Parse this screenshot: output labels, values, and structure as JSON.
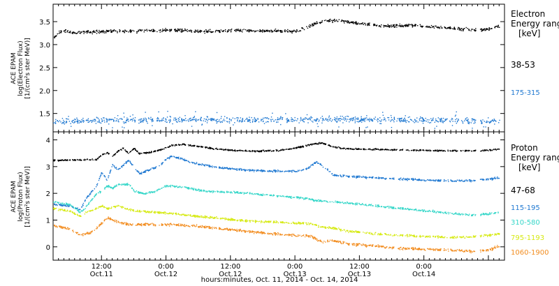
{
  "chart_data": [
    {
      "type": "scatter",
      "panel": "electron",
      "ylabel_lines": [
        "ACE EPAM",
        "log(Electron Flux)",
        "[1/(cm²s ster MeV)]"
      ],
      "yticks": [
        1.5,
        2.0,
        2.5,
        3.0,
        3.5
      ],
      "yticklabels": [
        "1.5",
        "2.0",
        "2.5",
        "3.0",
        "3.5"
      ],
      "ylim": [
        1.1,
        3.88
      ],
      "xlim": [
        0,
        84
      ],
      "legend_title_lines": [
        "Electron",
        "Energy ranges",
        "[keV]"
      ],
      "legend_placement": "right",
      "series": [
        {
          "name": "38-53",
          "color": "#000000",
          "noise": 0.035,
          "points": [
            [
              0,
              3.15
            ],
            [
              1,
              3.28
            ],
            [
              2,
              3.3
            ],
            [
              4,
              3.26
            ],
            [
              6,
              3.28
            ],
            [
              10,
              3.3
            ],
            [
              14,
              3.3
            ],
            [
              18,
              3.31
            ],
            [
              22,
              3.33
            ],
            [
              26,
              3.3
            ],
            [
              30,
              3.3
            ],
            [
              34,
              3.32
            ],
            [
              38,
              3.31
            ],
            [
              42,
              3.31
            ],
            [
              45,
              3.3
            ],
            [
              47,
              3.38
            ],
            [
              49,
              3.48
            ],
            [
              51,
              3.53
            ],
            [
              53,
              3.53
            ],
            [
              55,
              3.5
            ],
            [
              57,
              3.47
            ],
            [
              59,
              3.44
            ],
            [
              61,
              3.41
            ],
            [
              64,
              3.42
            ],
            [
              66,
              3.43
            ],
            [
              69,
              3.41
            ],
            [
              72,
              3.38
            ],
            [
              75,
              3.36
            ],
            [
              78,
              3.33
            ],
            [
              80,
              3.33
            ],
            [
              82,
              3.37
            ],
            [
              83,
              3.41
            ]
          ]
        },
        {
          "name": "175-315",
          "color": "#1f78d1",
          "noise": 0.07,
          "points": [
            [
              0,
              1.33
            ],
            [
              10,
              1.36
            ],
            [
              20,
              1.38
            ],
            [
              30,
              1.37
            ],
            [
              40,
              1.37
            ],
            [
              50,
              1.38
            ],
            [
              60,
              1.38
            ],
            [
              70,
              1.37
            ],
            [
              78,
              1.35
            ],
            [
              83,
              1.33
            ]
          ]
        }
      ]
    },
    {
      "type": "scatter",
      "panel": "proton",
      "ylabel_lines": [
        "ACE EPAM",
        "log(Proton Flux)",
        "[1/(cm²s ster MeV)]"
      ],
      "yticks": [
        0,
        1,
        2,
        3,
        4
      ],
      "yticklabels": [
        "0",
        "1",
        "2",
        "3",
        "4"
      ],
      "ylim": [
        -0.5,
        4.3
      ],
      "xlim": [
        0,
        84
      ],
      "xticks": [
        9,
        21,
        33,
        45,
        57,
        69,
        81
      ],
      "xticklabels_time": [
        "12:00",
        "0:00",
        "12:00",
        "0:00",
        "12:00",
        "0:00",
        ""
      ],
      "xticklabels_date": [
        "Oct.11",
        "Oct.12",
        "Oct.12",
        "Oct.13",
        "Oct.13",
        "Oct.14",
        ""
      ],
      "xlabel": "hours:minutes, Oct. 11, 2014 - Oct. 14, 2014",
      "legend_title_lines": [
        "Proton",
        "Energy ranges",
        "[keV]"
      ],
      "legend_placement": "right",
      "series": [
        {
          "name": "47-68",
          "color": "#000000",
          "noise": 0.03,
          "points": [
            [
              0,
              3.25
            ],
            [
              8,
              3.28
            ],
            [
              9,
              3.45
            ],
            [
              10,
              3.55
            ],
            [
              11,
              3.4
            ],
            [
              12,
              3.6
            ],
            [
              13,
              3.7
            ],
            [
              14,
              3.5
            ],
            [
              15,
              3.7
            ],
            [
              16,
              3.5
            ],
            [
              18,
              3.55
            ],
            [
              20,
              3.65
            ],
            [
              22,
              3.8
            ],
            [
              24,
              3.85
            ],
            [
              26,
              3.8
            ],
            [
              28,
              3.75
            ],
            [
              30,
              3.68
            ],
            [
              34,
              3.62
            ],
            [
              38,
              3.6
            ],
            [
              42,
              3.62
            ],
            [
              44,
              3.68
            ],
            [
              46,
              3.75
            ],
            [
              48,
              3.85
            ],
            [
              50,
              3.9
            ],
            [
              52,
              3.75
            ],
            [
              55,
              3.68
            ],
            [
              60,
              3.66
            ],
            [
              65,
              3.64
            ],
            [
              70,
              3.62
            ],
            [
              76,
              3.61
            ],
            [
              80,
              3.62
            ],
            [
              83,
              3.66
            ]
          ]
        },
        {
          "name": "115-195",
          "color": "#1f78d1",
          "noise": 0.04,
          "points": [
            [
              0,
              1.6
            ],
            [
              3,
              1.55
            ],
            [
              5,
              1.4
            ],
            [
              6,
              1.8
            ],
            [
              8,
              2.3
            ],
            [
              9,
              2.8
            ],
            [
              10,
              2.5
            ],
            [
              11,
              3.1
            ],
            [
              12,
              2.9
            ],
            [
              14,
              3.25
            ],
            [
              16,
              2.75
            ],
            [
              18,
              2.9
            ],
            [
              20,
              3.1
            ],
            [
              21,
              3.3
            ],
            [
              22,
              3.4
            ],
            [
              24,
              3.3
            ],
            [
              26,
              3.15
            ],
            [
              30,
              3.0
            ],
            [
              35,
              2.9
            ],
            [
              40,
              2.85
            ],
            [
              45,
              2.85
            ],
            [
              47,
              2.9
            ],
            [
              49,
              3.2
            ],
            [
              50,
              3.05
            ],
            [
              51,
              2.9
            ],
            [
              52,
              2.7
            ],
            [
              55,
              2.65
            ],
            [
              60,
              2.6
            ],
            [
              65,
              2.55
            ],
            [
              70,
              2.5
            ],
            [
              75,
              2.48
            ],
            [
              78,
              2.5
            ],
            [
              81,
              2.55
            ],
            [
              83,
              2.6
            ]
          ]
        },
        {
          "name": "310-580",
          "color": "#33d6c8",
          "noise": 0.04,
          "points": [
            [
              0,
              1.7
            ],
            [
              3,
              1.6
            ],
            [
              5,
              1.3
            ],
            [
              6,
              1.5
            ],
            [
              8,
              2.0
            ],
            [
              9,
              2.1
            ],
            [
              10,
              2.3
            ],
            [
              11,
              2.2
            ],
            [
              12,
              2.35
            ],
            [
              14,
              2.35
            ],
            [
              15,
              2.1
            ],
            [
              17,
              2.0
            ],
            [
              19,
              2.1
            ],
            [
              21,
              2.3
            ],
            [
              24,
              2.25
            ],
            [
              28,
              2.1
            ],
            [
              34,
              2.05
            ],
            [
              40,
              1.95
            ],
            [
              46,
              1.85
            ],
            [
              49,
              1.75
            ],
            [
              52,
              1.7
            ],
            [
              55,
              1.65
            ],
            [
              60,
              1.55
            ],
            [
              65,
              1.45
            ],
            [
              70,
              1.35
            ],
            [
              75,
              1.25
            ],
            [
              78,
              1.2
            ],
            [
              81,
              1.25
            ],
            [
              83,
              1.32
            ]
          ]
        },
        {
          "name": "795-1193",
          "color": "#d6ea14",
          "noise": 0.045,
          "points": [
            [
              0,
              1.45
            ],
            [
              3,
              1.35
            ],
            [
              5,
              1.15
            ],
            [
              6,
              1.3
            ],
            [
              8,
              1.45
            ],
            [
              9,
              1.55
            ],
            [
              10,
              1.45
            ],
            [
              12,
              1.55
            ],
            [
              14,
              1.4
            ],
            [
              16,
              1.35
            ],
            [
              20,
              1.3
            ],
            [
              25,
              1.2
            ],
            [
              30,
              1.1
            ],
            [
              35,
              1.0
            ],
            [
              40,
              0.95
            ],
            [
              45,
              0.9
            ],
            [
              48,
              0.88
            ],
            [
              50,
              0.75
            ],
            [
              52,
              0.72
            ],
            [
              55,
              0.6
            ],
            [
              60,
              0.5
            ],
            [
              65,
              0.45
            ],
            [
              70,
              0.4
            ],
            [
              75,
              0.37
            ],
            [
              78,
              0.4
            ],
            [
              81,
              0.45
            ],
            [
              83,
              0.5
            ]
          ]
        },
        {
          "name": "1060-1900",
          "color": "#f28c1e",
          "noise": 0.05,
          "points": [
            [
              0,
              0.8
            ],
            [
              3,
              0.7
            ],
            [
              5,
              0.45
            ],
            [
              7,
              0.55
            ],
            [
              9,
              0.9
            ],
            [
              10,
              1.1
            ],
            [
              12,
              0.95
            ],
            [
              14,
              0.85
            ],
            [
              18,
              0.85
            ],
            [
              22,
              0.85
            ],
            [
              26,
              0.8
            ],
            [
              30,
              0.72
            ],
            [
              35,
              0.62
            ],
            [
              40,
              0.52
            ],
            [
              45,
              0.45
            ],
            [
              48,
              0.4
            ],
            [
              50,
              0.2
            ],
            [
              52,
              0.25
            ],
            [
              55,
              0.12
            ],
            [
              60,
              0.05
            ],
            [
              65,
              -0.05
            ],
            [
              70,
              -0.08
            ],
            [
              75,
              -0.12
            ],
            [
              78,
              -0.15
            ],
            [
              81,
              -0.1
            ],
            [
              83,
              0.05
            ]
          ]
        }
      ]
    }
  ]
}
